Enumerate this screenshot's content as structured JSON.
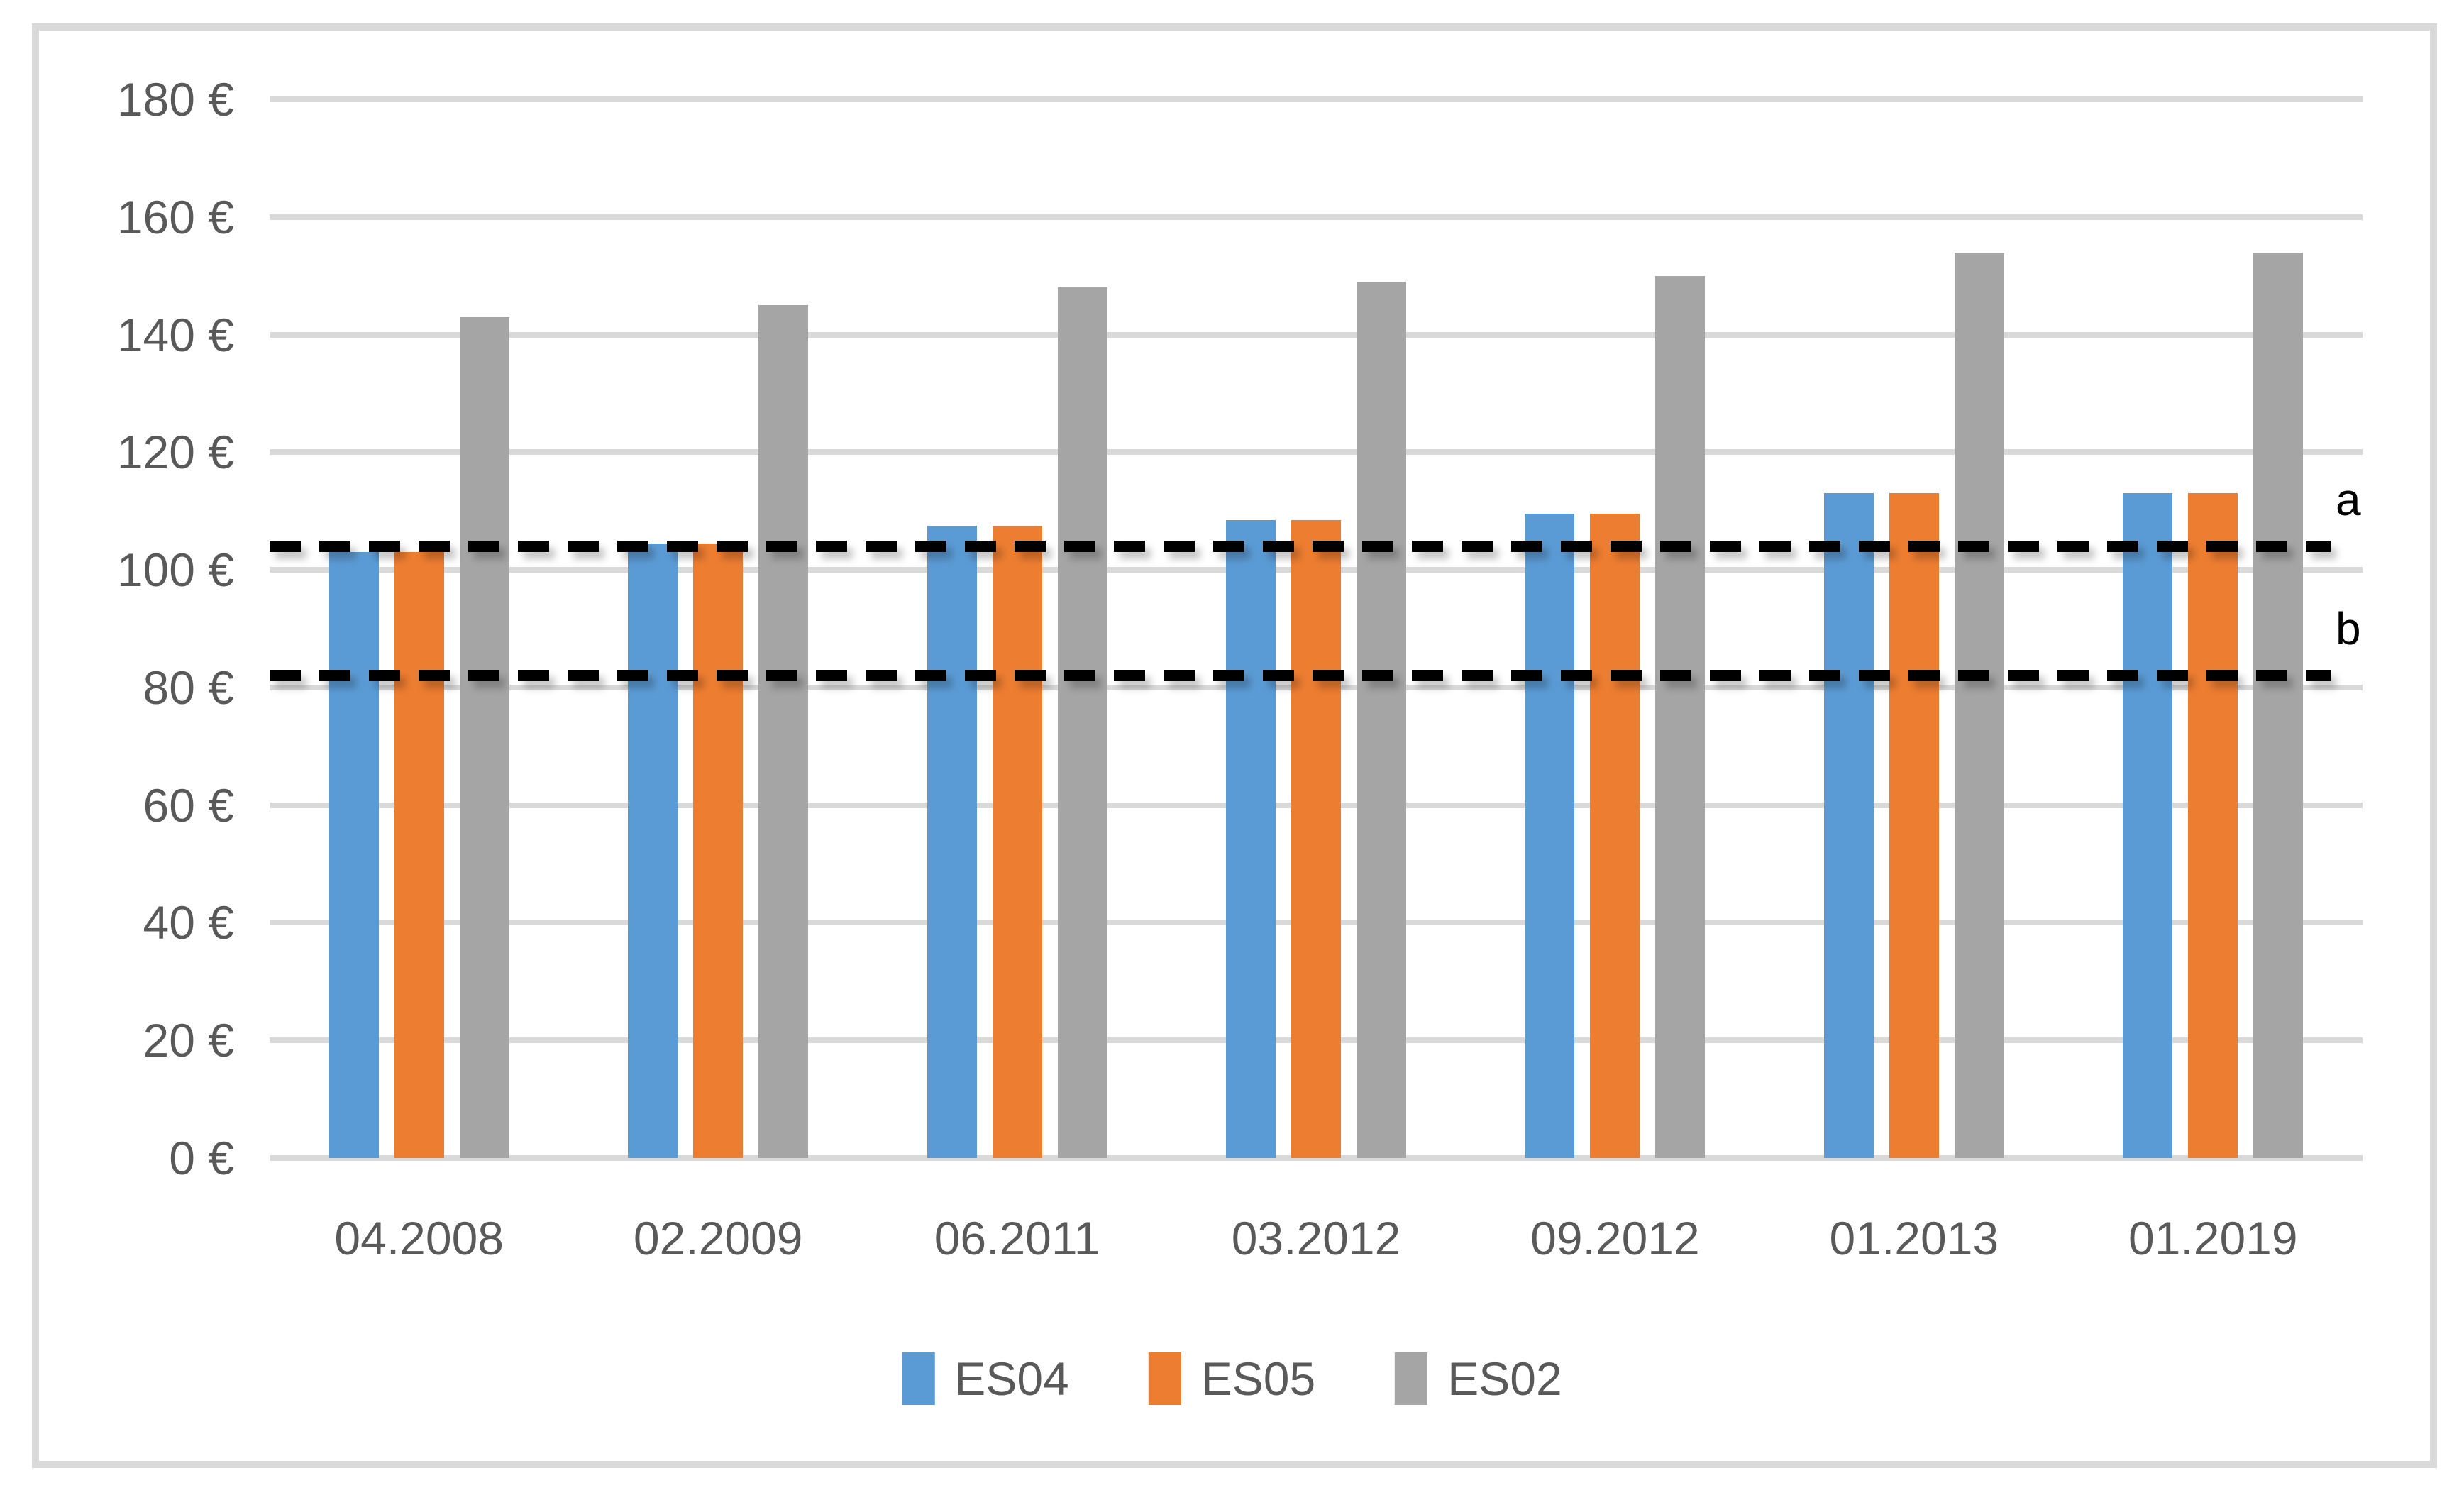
{
  "chart_data": {
    "type": "bar",
    "title": "",
    "categories": [
      "04.2008",
      "02.2009",
      "06.2011",
      "03.2012",
      "09.2012",
      "01.2013",
      "01.2019"
    ],
    "series": [
      {
        "name": "ES04",
        "color": "#5B9BD5",
        "values": [
          103,
          104.5,
          107.5,
          108.5,
          109.5,
          113,
          113
        ]
      },
      {
        "name": "ES05",
        "color": "#ED7D31",
        "values": [
          103,
          104.5,
          107.5,
          108.5,
          109.5,
          113,
          113
        ]
      },
      {
        "name": "ES02",
        "color": "#A5A5A5",
        "values": [
          143,
          145,
          148,
          149,
          150,
          154,
          154
        ]
      }
    ],
    "ref_lines": [
      {
        "label": "a",
        "value": 104,
        "style": "dashed",
        "color": "#000000"
      },
      {
        "label": "b",
        "value": 82,
        "style": "dashed",
        "color": "#000000"
      }
    ],
    "y_axis": {
      "min": 0,
      "max": 180,
      "step": 20,
      "tick_suffix": " €",
      "tick_labels": [
        "0 €",
        "20 €",
        "40 €",
        "60 €",
        "80 €",
        "100 €",
        "120 €",
        "140 €",
        "160 €",
        "180 €"
      ]
    },
    "xlabel": "",
    "ylabel": "",
    "legend_position": "bottom",
    "grid": true,
    "grid_color": "#D9D9D9",
    "axis_text_color": "#595959",
    "frame_color": "#D9D9D9"
  }
}
